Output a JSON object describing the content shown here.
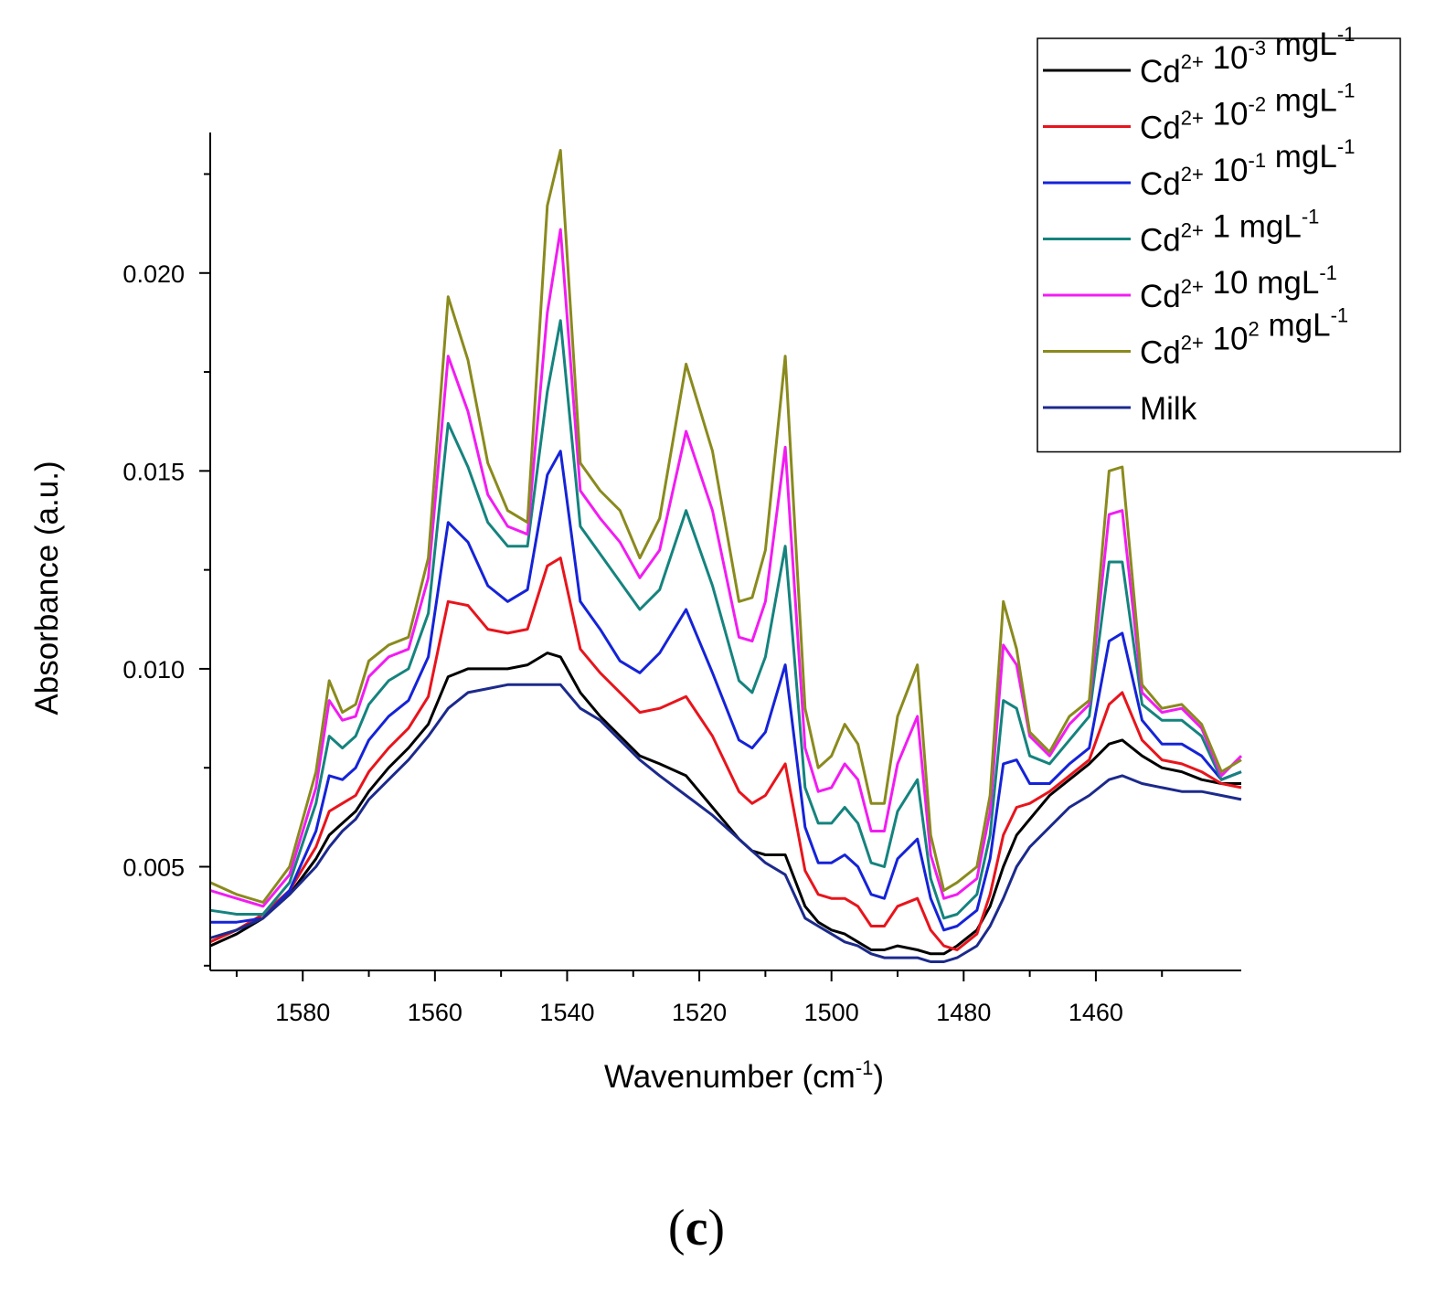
{
  "panel_label": {
    "open": "(",
    "letter": "c",
    "close": ")"
  },
  "chart_data": {
    "type": "line",
    "title": "",
    "xlabel": {
      "main": "Wavenumber (cm",
      "sup": "-1",
      "tail": ")"
    },
    "ylabel": "Absorbance (a.u.)",
    "xlim": [
      1594,
      1438
    ],
    "ylim": [
      0.00238,
      0.02355
    ],
    "x_ticks": [
      1580,
      1560,
      1540,
      1520,
      1500,
      1480,
      1460
    ],
    "x_tick_labels": [
      "1580",
      "1560",
      "1540",
      "1520",
      "1500",
      "1480",
      "1460"
    ],
    "x_minor_ticks": [
      1590,
      1570,
      1550,
      1530,
      1510,
      1490,
      1470,
      1450
    ],
    "y_ticks": [
      0.005,
      0.01,
      0.015,
      0.02
    ],
    "y_tick_labels": [
      "0.005",
      "0.010",
      "0.015",
      "0.020"
    ],
    "y_minor_ticks": [
      0.0025,
      0.0075,
      0.0125,
      0.0175,
      0.0225
    ],
    "legend_position": "top-right",
    "x": [
      1594,
      1590,
      1586,
      1582,
      1578,
      1576,
      1574,
      1572,
      1570,
      1567,
      1564,
      1561,
      1558,
      1555,
      1552,
      1549,
      1546,
      1543,
      1541,
      1538,
      1535,
      1532,
      1529,
      1526,
      1522,
      1518,
      1514,
      1512,
      1510,
      1507,
      1504,
      1502,
      1500,
      1498,
      1496,
      1494,
      1492,
      1490,
      1487,
      1485,
      1483,
      1481,
      1478,
      1476,
      1474,
      1472,
      1470,
      1467,
      1464,
      1461,
      1458,
      1456,
      1453,
      1450,
      1447,
      1444,
      1441,
      1438
    ],
    "series": [
      {
        "name": "Cd2+ 10-3 mgL-1",
        "label_main": "Cd",
        "label_sup1": "2+",
        "label_mid": " 10",
        "label_sup2": "-3",
        "label_tail": " mgL",
        "label_sup3": "-1",
        "color": "#000000",
        "values": [
          0.003,
          0.0033,
          0.0037,
          0.0043,
          0.0052,
          0.0058,
          0.0061,
          0.0064,
          0.0069,
          0.0075,
          0.008,
          0.0086,
          0.0098,
          0.01,
          0.01,
          0.01,
          0.0101,
          0.0104,
          0.0103,
          0.0094,
          0.0088,
          0.0083,
          0.0078,
          0.0076,
          0.0073,
          0.0065,
          0.0057,
          0.0054,
          0.0053,
          0.0053,
          0.004,
          0.0036,
          0.0034,
          0.0033,
          0.0031,
          0.0029,
          0.0029,
          0.003,
          0.0029,
          0.0028,
          0.0028,
          0.003,
          0.0034,
          0.004,
          0.005,
          0.0058,
          0.0062,
          0.0068,
          0.0072,
          0.0076,
          0.0081,
          0.0082,
          0.0078,
          0.0075,
          0.0074,
          0.0072,
          0.0071,
          0.0071
        ]
      },
      {
        "name": "Cd2+ 10-2 mgL-1",
        "label_main": "Cd",
        "label_sup1": "2+",
        "label_mid": " 10",
        "label_sup2": "-2",
        "label_tail": " mgL",
        "label_sup3": "-1",
        "color": "#e8141c",
        "values": [
          0.0031,
          0.0034,
          0.0038,
          0.0044,
          0.0055,
          0.0064,
          0.0066,
          0.0068,
          0.0074,
          0.008,
          0.0085,
          0.0093,
          0.0117,
          0.0116,
          0.011,
          0.0109,
          0.011,
          0.0126,
          0.0128,
          0.0105,
          0.0099,
          0.0094,
          0.0089,
          0.009,
          0.0093,
          0.0083,
          0.0069,
          0.0066,
          0.0068,
          0.0076,
          0.0049,
          0.0043,
          0.0042,
          0.0042,
          0.004,
          0.0035,
          0.0035,
          0.004,
          0.0042,
          0.0034,
          0.003,
          0.0029,
          0.0033,
          0.0043,
          0.0058,
          0.0065,
          0.0066,
          0.0069,
          0.0073,
          0.0077,
          0.0091,
          0.0094,
          0.0082,
          0.0077,
          0.0076,
          0.0074,
          0.0071,
          0.007
        ]
      },
      {
        "name": "Cd2+ 10-1 mgL-1",
        "label_main": "Cd",
        "label_sup1": "2+",
        "label_mid": " 10",
        "label_sup2": "-1",
        "label_tail": " mgL",
        "label_sup3": "-1",
        "color": "#1523d8",
        "values": [
          0.0036,
          0.0036,
          0.0037,
          0.0044,
          0.0059,
          0.0073,
          0.0072,
          0.0075,
          0.0082,
          0.0088,
          0.0092,
          0.0103,
          0.0137,
          0.0132,
          0.0121,
          0.0117,
          0.012,
          0.0149,
          0.0155,
          0.0117,
          0.011,
          0.0102,
          0.0099,
          0.0104,
          0.0115,
          0.0099,
          0.0082,
          0.008,
          0.0084,
          0.0101,
          0.006,
          0.0051,
          0.0051,
          0.0053,
          0.005,
          0.0043,
          0.0042,
          0.0052,
          0.0057,
          0.0042,
          0.0034,
          0.0035,
          0.0039,
          0.0052,
          0.0076,
          0.0077,
          0.0071,
          0.0071,
          0.0076,
          0.008,
          0.0107,
          0.0109,
          0.0087,
          0.0081,
          0.0081,
          0.0078,
          0.0072,
          0.0074
        ]
      },
      {
        "name": "Cd2+ 1 mgL-1",
        "label_main": "Cd",
        "label_sup1": "2+",
        "label_mid": " 1",
        "label_sup2": "",
        "label_tail": " mgL",
        "label_sup3": "-1",
        "color": "#15837e",
        "values": [
          0.0039,
          0.0038,
          0.0038,
          0.0046,
          0.0066,
          0.0083,
          0.008,
          0.0083,
          0.0091,
          0.0097,
          0.01,
          0.0114,
          0.0162,
          0.0151,
          0.0137,
          0.0131,
          0.0131,
          0.017,
          0.0188,
          0.0136,
          0.0129,
          0.0122,
          0.0115,
          0.012,
          0.014,
          0.0121,
          0.0097,
          0.0094,
          0.0103,
          0.0131,
          0.007,
          0.0061,
          0.0061,
          0.0065,
          0.0061,
          0.0051,
          0.005,
          0.0064,
          0.0072,
          0.0047,
          0.0037,
          0.0038,
          0.0043,
          0.0058,
          0.0092,
          0.009,
          0.0078,
          0.0076,
          0.0082,
          0.0088,
          0.0127,
          0.0127,
          0.0091,
          0.0087,
          0.0087,
          0.0083,
          0.0072,
          0.0074
        ]
      },
      {
        "name": "Cd2+ 10 mgL-1",
        "label_main": "Cd",
        "label_sup1": "2+",
        "label_mid": " 10",
        "label_sup2": "",
        "label_tail": " mgL",
        "label_sup3": "-1",
        "color": "#f21cf2",
        "values": [
          0.0044,
          0.0042,
          0.004,
          0.0048,
          0.007,
          0.0092,
          0.0087,
          0.0088,
          0.0098,
          0.0103,
          0.0105,
          0.0123,
          0.0179,
          0.0165,
          0.0144,
          0.0136,
          0.0134,
          0.019,
          0.0211,
          0.0145,
          0.0138,
          0.0132,
          0.0123,
          0.013,
          0.016,
          0.014,
          0.0108,
          0.0107,
          0.0117,
          0.0156,
          0.008,
          0.0069,
          0.007,
          0.0076,
          0.0072,
          0.0059,
          0.0059,
          0.0076,
          0.0088,
          0.0053,
          0.0042,
          0.0043,
          0.0047,
          0.0064,
          0.0106,
          0.0101,
          0.0083,
          0.0078,
          0.0086,
          0.0091,
          0.0139,
          0.014,
          0.0094,
          0.0089,
          0.009,
          0.0085,
          0.0073,
          0.0078
        ]
      },
      {
        "name": "Cd2+ 102 mgL-1",
        "label_main": "Cd",
        "label_sup1": "2+",
        "label_mid": " 10",
        "label_sup2": "2",
        "label_tail": " mgL",
        "label_sup3": "-1",
        "color": "#8a8a1e",
        "values": [
          0.0046,
          0.0043,
          0.0041,
          0.005,
          0.0074,
          0.0097,
          0.0089,
          0.0091,
          0.0102,
          0.0106,
          0.0108,
          0.0128,
          0.0194,
          0.0178,
          0.0152,
          0.014,
          0.0137,
          0.0217,
          0.0231,
          0.0152,
          0.0145,
          0.014,
          0.0128,
          0.0138,
          0.0177,
          0.0155,
          0.0117,
          0.0118,
          0.013,
          0.0179,
          0.009,
          0.0075,
          0.0078,
          0.0086,
          0.0081,
          0.0066,
          0.0066,
          0.0088,
          0.0101,
          0.0058,
          0.0044,
          0.0046,
          0.005,
          0.0068,
          0.0117,
          0.0105,
          0.0084,
          0.0079,
          0.0088,
          0.0092,
          0.015,
          0.0151,
          0.0096,
          0.009,
          0.0091,
          0.0086,
          0.0074,
          0.0077
        ]
      },
      {
        "name": "Milk",
        "label_main": "Milk",
        "label_sup1": "",
        "label_mid": "",
        "label_sup2": "",
        "label_tail": "",
        "label_sup3": "",
        "color": "#1c2a8c",
        "values": [
          0.0032,
          0.0034,
          0.0037,
          0.0043,
          0.005,
          0.0055,
          0.0059,
          0.0062,
          0.0067,
          0.0072,
          0.0077,
          0.0083,
          0.009,
          0.0094,
          0.0095,
          0.0096,
          0.0096,
          0.0096,
          0.0096,
          0.009,
          0.0087,
          0.0082,
          0.0077,
          0.0073,
          0.0068,
          0.0063,
          0.0057,
          0.0054,
          0.0051,
          0.0048,
          0.0037,
          0.0035,
          0.0033,
          0.0031,
          0.003,
          0.0028,
          0.0027,
          0.0027,
          0.0027,
          0.0026,
          0.0026,
          0.0027,
          0.003,
          0.0035,
          0.0042,
          0.005,
          0.0055,
          0.006,
          0.0065,
          0.0068,
          0.0072,
          0.0073,
          0.0071,
          0.007,
          0.0069,
          0.0069,
          0.0068,
          0.0067
        ]
      }
    ]
  }
}
